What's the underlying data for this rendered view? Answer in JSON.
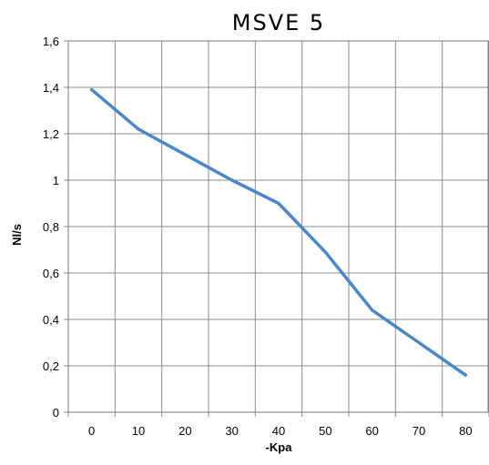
{
  "chart_data": {
    "type": "line",
    "title": "MSVE 5",
    "xlabel": "-Kpa",
    "ylabel": "Nl/s",
    "x": [
      0,
      10,
      20,
      30,
      40,
      50,
      60,
      70,
      80
    ],
    "x_tick_labels": [
      "0",
      "10",
      "20",
      "30",
      "40",
      "50",
      "60",
      "70",
      "80"
    ],
    "y_tick_labels": [
      "0",
      "0,2",
      "0,4",
      "0,6",
      "0,8",
      "1",
      "1,2",
      "1,4",
      "1,6"
    ],
    "ylim": [
      0,
      1.6
    ],
    "grid": true,
    "series": [
      {
        "values": [
          1.39,
          1.22,
          1.11,
          1.0,
          0.9,
          0.69,
          0.44,
          0.3,
          0.16
        ]
      }
    ],
    "line_color": "#4a87c6"
  }
}
